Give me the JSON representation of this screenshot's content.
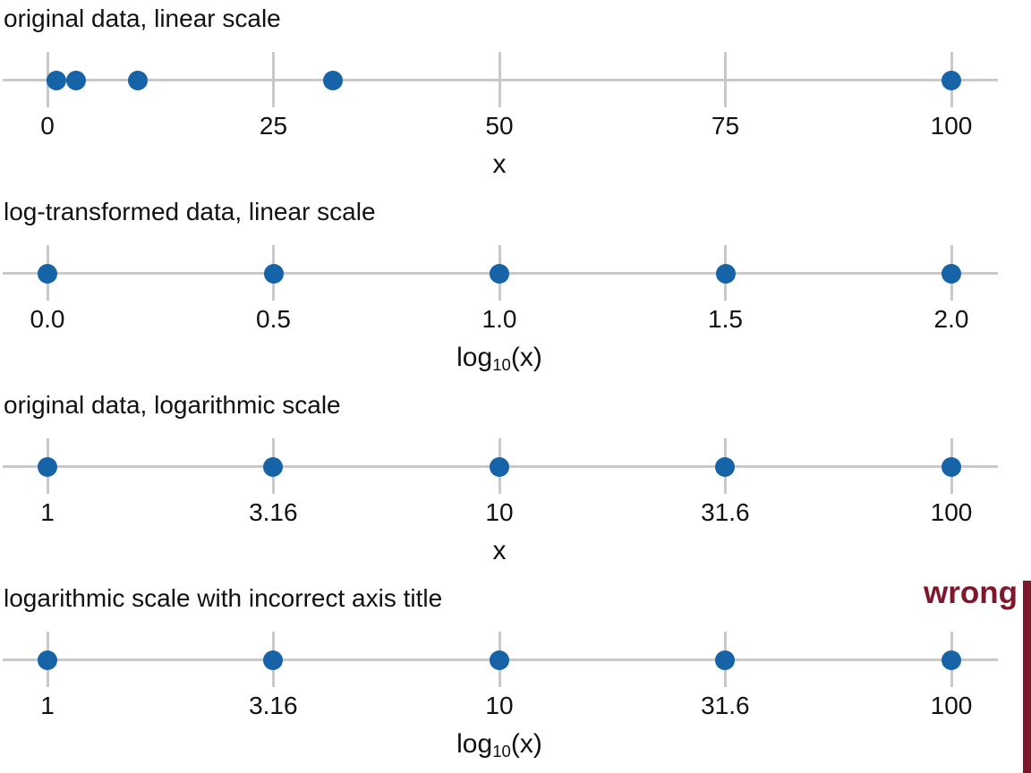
{
  "annotations": {
    "wrong_label": "wrong"
  },
  "colors": {
    "point_blue": "#1663A8",
    "axis_gray": "#C9C9C9",
    "wrong_red": "#7D172C",
    "text": "#111111",
    "background": "#FFFFFF"
  },
  "chart_data": [
    {
      "type": "scatter",
      "title": "original data, linear scale",
      "xlabel": "x",
      "xlabel_parts": {
        "pre": "x",
        "sub": "",
        "post": ""
      },
      "scale": "linear",
      "axis_range": [
        0,
        100
      ],
      "ticks": [
        0,
        25,
        50,
        75,
        100
      ],
      "tick_labels": [
        "0",
        "25",
        "50",
        "75",
        "100"
      ],
      "points": [
        1,
        3.16,
        10,
        31.6,
        100
      ],
      "grid": false,
      "legend": false
    },
    {
      "type": "scatter",
      "title": "log-transformed data, linear scale",
      "xlabel": "log10(x)",
      "xlabel_parts": {
        "pre": "log",
        "sub": "10",
        "post": "(x)"
      },
      "scale": "linear",
      "axis_range": [
        0,
        2
      ],
      "ticks": [
        0,
        0.5,
        1,
        1.5,
        2
      ],
      "tick_labels": [
        "0.0",
        "0.5",
        "1.0",
        "1.5",
        "2.0"
      ],
      "points": [
        0,
        0.5,
        1,
        1.5,
        2
      ],
      "grid": false,
      "legend": false
    },
    {
      "type": "scatter",
      "title": "original data, logarithmic scale",
      "xlabel": "x",
      "xlabel_parts": {
        "pre": "x",
        "sub": "",
        "post": ""
      },
      "scale": "log10",
      "axis_range": [
        1,
        100
      ],
      "ticks": [
        1,
        3.16,
        10,
        31.6,
        100
      ],
      "tick_labels": [
        "1",
        "3.16",
        "10",
        "31.6",
        "100"
      ],
      "points": [
        1,
        3.16,
        10,
        31.6,
        100
      ],
      "grid": false,
      "legend": false
    },
    {
      "type": "scatter",
      "title": "logarithmic scale with incorrect axis title",
      "xlabel": "log10(x)",
      "xlabel_parts": {
        "pre": "log",
        "sub": "10",
        "post": "(x)"
      },
      "scale": "log10",
      "axis_range": [
        1,
        100
      ],
      "ticks": [
        1,
        3.16,
        10,
        31.6,
        100
      ],
      "tick_labels": [
        "1",
        "3.16",
        "10",
        "31.6",
        "100"
      ],
      "points": [
        1,
        3.16,
        10,
        31.6,
        100
      ],
      "annotation": "wrong",
      "grid": false,
      "legend": false
    }
  ]
}
